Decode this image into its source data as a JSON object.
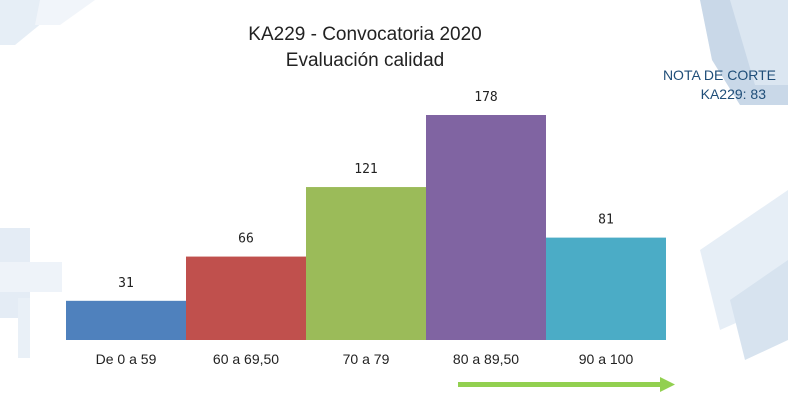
{
  "slide": {
    "title_line1": "KA229 - Convocatoria 2020",
    "title_line2": "Evaluación calidad",
    "note_line1": "NOTA DE CORTE",
    "note_line2": "KA229: 83"
  },
  "chart_data": {
    "type": "bar",
    "categories": [
      "De 0 a 59",
      "60 a 69,50",
      "70 a 79",
      "80 a 89,50",
      "90 a 100"
    ],
    "values": [
      31,
      66,
      121,
      178,
      81
    ],
    "colors": [
      "#4f81bd",
      "#c0504d",
      "#9bbb59",
      "#8064a2",
      "#4bacc6"
    ],
    "title": "KA229 - Convocatoria 2020 Evaluación calidad",
    "xlabel": "",
    "ylabel": "",
    "ylim": [
      0,
      178
    ],
    "grid": false,
    "legend": "none",
    "arrow_color": "#92d050"
  }
}
